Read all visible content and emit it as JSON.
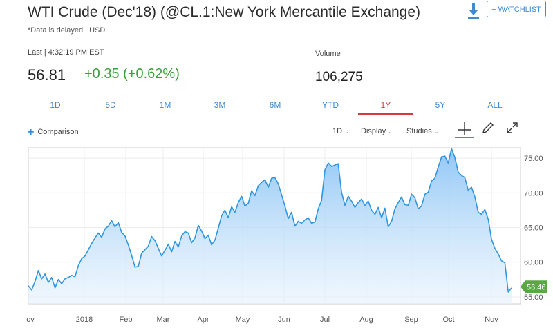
{
  "header": {
    "title": "WTI Crude (Dec'18) (@CL.1:New York Mercantile Exchange)",
    "delayed_note": "*Data is delayed | USD",
    "watchlist_label": "+ WATCHLIST"
  },
  "quote": {
    "last_label": "Last | 4:32:19 PM EST",
    "price": "56.81",
    "change": "+0.35 (+0.62%)",
    "volume_label": "Volume",
    "volume": "106,275",
    "change_color": "#3b9f3b"
  },
  "range_tabs": [
    "1D",
    "5D",
    "1M",
    "3M",
    "6M",
    "YTD",
    "1Y",
    "5Y",
    "ALL"
  ],
  "active_range": "1Y",
  "toolbar": {
    "comparison": "Comparison",
    "interval": "1D",
    "display": "Display",
    "studies": "Studies"
  },
  "chart_data": {
    "type": "area",
    "x_tick_labels": [
      "ov",
      "2018",
      "Feb",
      "Mar",
      "Apr",
      "May",
      "Jun",
      "Jul",
      "Aug",
      "Sep",
      "Oct",
      "Nov"
    ],
    "y_ticks": [
      55.0,
      60.0,
      65.0,
      70.0,
      75.0
    ],
    "ylim": [
      54.0,
      76.5
    ],
    "last_value_label": "56.46",
    "series": [
      {
        "values": [
          56.6,
          56.0,
          57.2,
          58.8,
          57.6,
          58.3,
          57.1,
          57.8,
          56.3,
          57.5,
          56.9,
          57.6,
          57.8,
          58.1,
          57.9,
          59.5,
          60.5,
          60.9,
          61.8,
          62.7,
          63.5,
          64.2,
          63.6,
          64.8,
          65.2,
          66.0,
          65.1,
          65.7,
          64.3,
          63.8,
          62.5,
          61.0,
          59.3,
          59.4,
          61.3,
          61.8,
          62.3,
          63.7,
          63.1,
          62.0,
          60.9,
          61.7,
          62.6,
          61.5,
          63.0,
          62.2,
          63.8,
          64.4,
          64.2,
          62.8,
          63.5,
          65.3,
          64.5,
          63.4,
          63.9,
          62.5,
          63.2,
          64.9,
          66.7,
          67.5,
          66.4,
          68.0,
          67.2,
          68.6,
          69.5,
          68.1,
          68.5,
          70.3,
          69.6,
          71.0,
          71.5,
          71.9,
          70.8,
          72.1,
          72.2,
          71.3,
          69.7,
          68.1,
          66.3,
          67.2,
          65.2,
          65.9,
          65.6,
          66.1,
          66.4,
          65.6,
          65.8,
          67.7,
          68.9,
          73.3,
          74.3,
          73.8,
          74.0,
          74.2,
          70.1,
          68.2,
          69.5,
          68.8,
          67.9,
          68.6,
          69.1,
          68.2,
          68.8,
          67.5,
          66.9,
          67.9,
          66.4,
          67.8,
          65.1,
          65.9,
          67.7,
          68.6,
          69.4,
          68.3,
          68.2,
          69.8,
          69.3,
          67.7,
          68.1,
          69.8,
          70.1,
          71.7,
          72.1,
          73.7,
          75.2,
          75.3,
          74.3,
          76.4,
          75.1,
          73.0,
          72.5,
          72.2,
          70.4,
          70.8,
          69.4,
          67.2,
          66.9,
          67.6,
          66.2,
          63.3,
          62.0,
          61.2,
          60.2,
          59.9,
          55.7,
          56.3
        ]
      }
    ]
  }
}
